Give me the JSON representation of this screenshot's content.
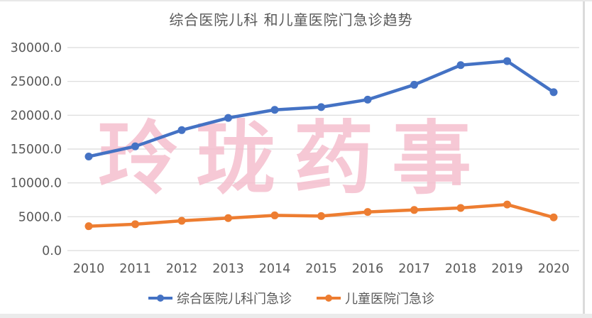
{
  "page": {
    "watermark": "玲珑药事"
  },
  "chart_data": {
    "type": "line",
    "title": "综合医院儿科 和儿童医院门急诊趋势",
    "categories": [
      "2010",
      "2011",
      "2012",
      "2013",
      "2014",
      "2015",
      "2016",
      "2017",
      "2018",
      "2019",
      "2020"
    ],
    "series": [
      {
        "name": "综合医院儿科门急诊",
        "color": "#4472C4",
        "values": [
          13900,
          15400,
          17800,
          19600,
          20800,
          21200,
          22300,
          24500,
          27400,
          28000,
          23400
        ]
      },
      {
        "name": "儿童医院门急诊",
        "color": "#ED7D31",
        "values": [
          3600,
          3900,
          4400,
          4800,
          5200,
          5100,
          5700,
          6000,
          6300,
          6800,
          4900
        ]
      }
    ],
    "xlabel": "",
    "ylabel": "",
    "ylim": [
      0,
      30000
    ],
    "ytick_step": 5000,
    "ytick_labels": [
      "0.0",
      "5000.0",
      "10000.0",
      "15000.0",
      "20000.0",
      "25000.0",
      "30000.0"
    ],
    "grid": true,
    "legend_position": "bottom",
    "watermark": "玲珑药事"
  },
  "colors": {
    "series_blue": "#4472C4",
    "series_orange": "#ED7D31",
    "grid": "#D9D9D9",
    "axis_text": "#595959",
    "title_text": "#595959",
    "watermark_pink": "#F5BFCE",
    "border_gray": "#DBDBDB"
  }
}
